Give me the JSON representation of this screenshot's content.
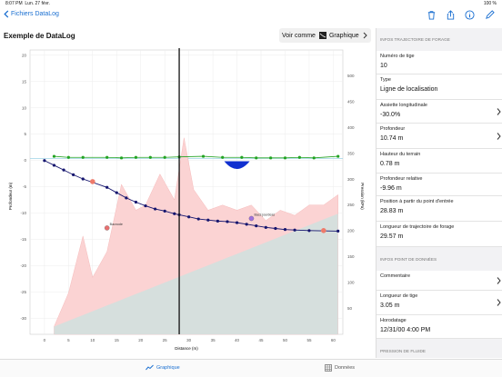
{
  "status_bar": {
    "time": "8:07 PM",
    "date": "Lun. 27 févr.",
    "wifi": "wifi-icon",
    "battery": "100 %"
  },
  "nav": {
    "back_label": "Fichiers DataLog"
  },
  "header": {
    "title": "Exemple de DataLog",
    "view_as_label": "Voir comme",
    "view_as_value": "Graphique"
  },
  "panel": {
    "section_trajectory": "INFOS TRAJECTOIRE DE FORAGE",
    "section_point": "INFOS POINT DE DONNÉES",
    "section_pressure": "PRESSION DE FLUIDE",
    "trajectory_rows": [
      {
        "label": "Numéro de tige",
        "value": "10"
      },
      {
        "label": "Type",
        "value": "Ligne de localisation"
      },
      {
        "label": "Assiette longitudinale",
        "value": "-30.0%"
      },
      {
        "label": "Profondeur",
        "value": "10.74 m"
      },
      {
        "label": "Hauteur du terrain",
        "value": "0.78 m"
      },
      {
        "label": "Profondeur relative",
        "value": "-9.96 m"
      },
      {
        "label": "Position à partir du point d'entrée",
        "value": "28.83 m"
      },
      {
        "label": "Longueur de trajectoire de forage",
        "value": "29.57 m"
      }
    ],
    "point_rows": [
      {
        "label": "Commentaire",
        "value": ""
      },
      {
        "label": "Longueur de tige",
        "value": "3.05 m"
      },
      {
        "label": "Horodatage",
        "value": "12/31/00 4:00 PM"
      }
    ]
  },
  "tabs": {
    "chart_label": "Graphique",
    "data_label": "Données"
  },
  "colors": {
    "accent": "#1a6fd1",
    "ground": "#22a322",
    "bore": "#15156e",
    "pressure_fill": "#fbd3d3",
    "pressure_fill2": "#cfe1de"
  },
  "chart_data": {
    "type": "line",
    "xlabel": "Distance (m)",
    "ylabel": "Profondeur (m)",
    "y2label": "Pression (kPa)",
    "xlim": [
      -3,
      62
    ],
    "ylim": [
      -33,
      21
    ],
    "y2lim": [
      0,
      550
    ],
    "x_ticks": [
      0,
      5,
      10,
      15,
      20,
      25,
      30,
      35,
      40,
      45,
      50,
      55,
      60
    ],
    "y_ticks": [
      20,
      15,
      10,
      5,
      0,
      -5,
      -10,
      -15,
      -20,
      -25,
      -30
    ],
    "y2_ticks": [
      500,
      450,
      400,
      350,
      300,
      250,
      200,
      150,
      100,
      50
    ],
    "cursor_x": 28,
    "annotations": [
      {
        "label": "Bacnode",
        "x": 13,
        "y": -12.8,
        "color": "#e87070"
      },
      {
        "label": "Bacs jourdeas",
        "x": 43,
        "y": -11,
        "color": "#a070e0"
      }
    ],
    "series": [
      {
        "name": "",
        "kind": "ground",
        "x": [
          2,
          5,
          8,
          13,
          16,
          19,
          22,
          25,
          28,
          33,
          37,
          41,
          44,
          47,
          50,
          53,
          56,
          61
        ],
        "y": [
          0.8,
          0.6,
          0.6,
          0.6,
          0.5,
          0.6,
          0.6,
          0.6,
          0.7,
          0.8,
          0.6,
          0.6,
          0.5,
          0.5,
          0.5,
          0.6,
          0.5,
          0.8
        ]
      },
      {
        "name": "",
        "kind": "bore",
        "x": [
          0,
          2,
          4,
          6,
          8,
          13,
          15,
          17,
          19,
          21,
          23,
          25,
          27,
          28,
          30,
          32,
          34,
          36,
          38,
          40,
          42,
          44,
          46,
          48,
          50,
          52,
          55,
          61
        ],
        "y": [
          0,
          -0.9,
          -1.8,
          -2.7,
          -3.5,
          -5.1,
          -6.1,
          -7.1,
          -7.9,
          -8.6,
          -9.2,
          -9.6,
          -10.1,
          -10.3,
          -10.7,
          -11.1,
          -11.3,
          -11.5,
          -11.6,
          -11.8,
          -12.1,
          -12.4,
          -12.7,
          -12.9,
          -13.1,
          -13.2,
          -13.3,
          -13.4
        ]
      },
      {
        "name": "",
        "kind": "pressure",
        "x": [
          2,
          5,
          8,
          10,
          13,
          16,
          19,
          21,
          24,
          27,
          29,
          31,
          34,
          37,
          40,
          43,
          46,
          49,
          52,
          55,
          58,
          61
        ],
        "y": [
          15,
          80,
          190,
          110,
          160,
          290,
          240,
          250,
          310,
          260,
          380,
          280,
          240,
          250,
          240,
          250,
          220,
          240,
          230,
          250,
          250,
          270
        ]
      }
    ],
    "markers": [
      {
        "x": 10,
        "y": -4,
        "color": "#ee7a6a"
      },
      {
        "x": 58,
        "y": -13.3,
        "color": "#ee7a6a"
      }
    ],
    "bulb": {
      "x": 40,
      "y": -0.3
    }
  }
}
